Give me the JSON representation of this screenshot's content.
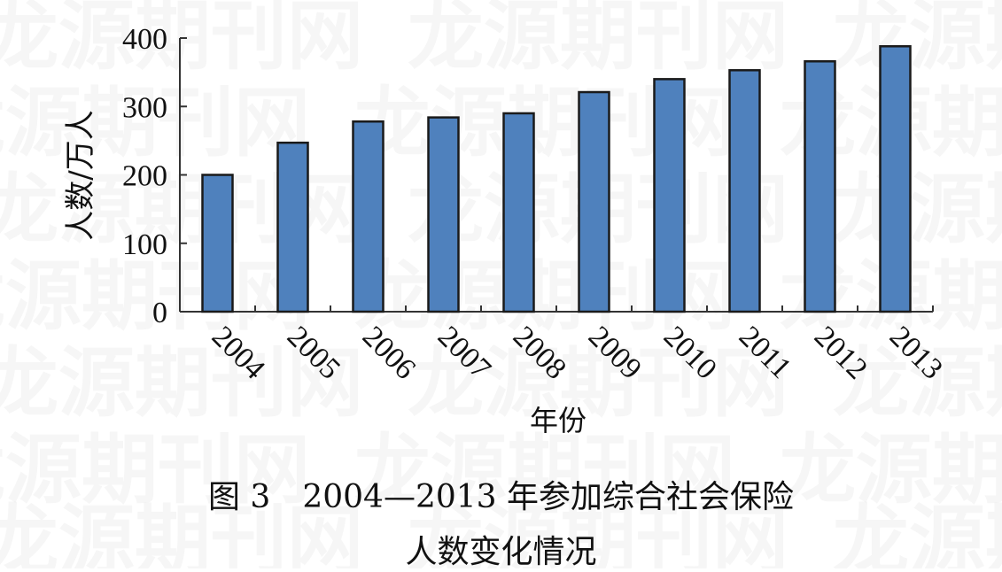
{
  "watermark_text": "龙源期刊网",
  "chart_data": {
    "type": "bar",
    "categories": [
      "2004",
      "2005",
      "2006",
      "2007",
      "2008",
      "2009",
      "2010",
      "2011",
      "2012",
      "2013"
    ],
    "values": [
      200,
      247,
      278,
      284,
      290,
      321,
      340,
      353,
      366,
      388
    ],
    "ylabel": "人数/万人",
    "xlabel": "年份",
    "ylim": [
      0,
      400
    ],
    "yticks": [
      "0",
      "100",
      "200",
      "300",
      "400"
    ],
    "grid": false,
    "legend": "none",
    "bar_color": "#4f81bd",
    "bar_edge_color": "#1a1a1a"
  },
  "caption": {
    "line1": "图 3　2004—2013 年参加综合社会保险",
    "line2": "人数变化情况"
  }
}
